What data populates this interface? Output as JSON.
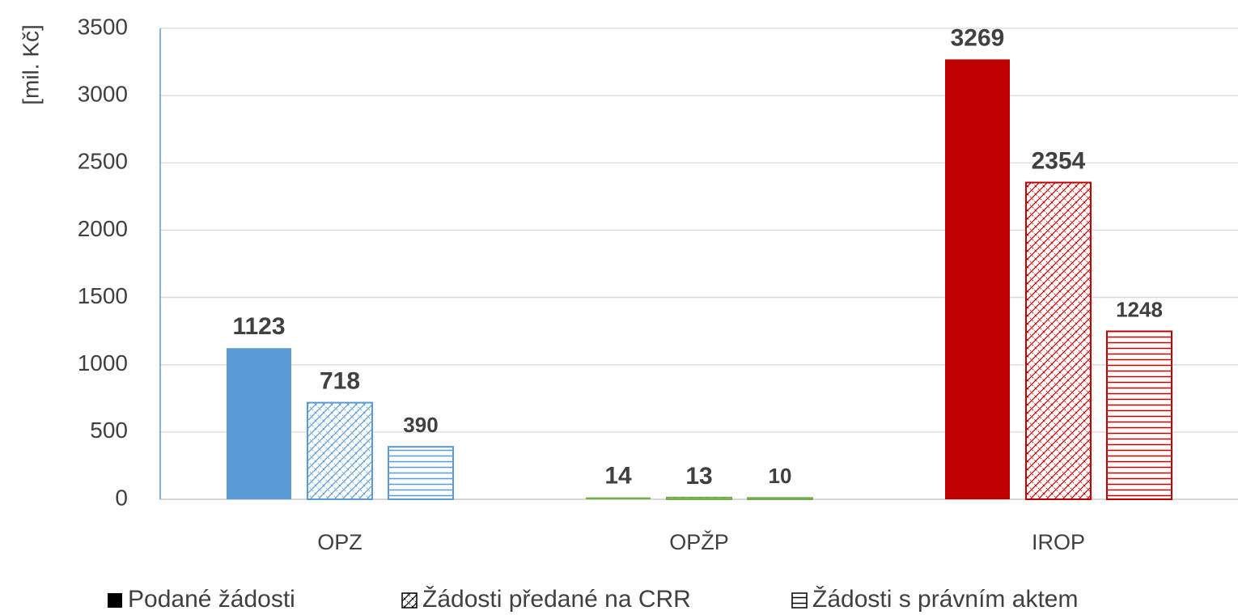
{
  "chart_data": {
    "type": "bar",
    "y_label": "[mil. Kč]",
    "categories": [
      "OPZ",
      "OPŽP",
      "IROP"
    ],
    "category_colors": [
      "#5b9bd5",
      "#70ad47",
      "#c00000"
    ],
    "series": [
      {
        "name": "Podané žádosti",
        "color": "#000000",
        "pattern": "solid",
        "values": [
          1123,
          14,
          3269
        ]
      },
      {
        "name": "Žádosti předané na CRR",
        "color": "#000000",
        "pattern": "crosshatch",
        "values": [
          718,
          13,
          2354
        ]
      },
      {
        "name": "Žádosti s právním aktem",
        "color": "#000000",
        "pattern": "horizontal",
        "values": [
          390,
          10,
          1248
        ]
      }
    ],
    "ylim": [
      0,
      3500
    ],
    "yticks": [
      0,
      500,
      1000,
      1500,
      2000,
      2500,
      3000,
      3500
    ],
    "grid": true,
    "legend": "bottom"
  }
}
